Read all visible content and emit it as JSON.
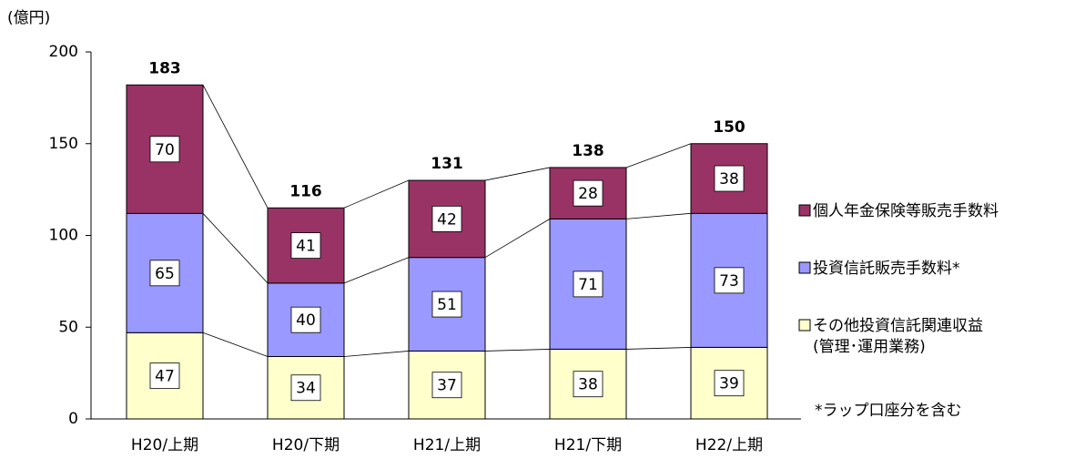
{
  "chart_data": {
    "type": "stacked_bar",
    "unit_label": "(億円)",
    "categories": [
      "H20/上期",
      "H20/下期",
      "H21/上期",
      "H21/下期",
      "H22/上期"
    ],
    "series": [
      {
        "name": "その他投資信託関連収益",
        "name_note": "(管理･運用業務)",
        "color": "#ffffcc",
        "values": [
          47,
          34,
          37,
          38,
          39
        ]
      },
      {
        "name": "投資信託販売手数料*",
        "color": "#9999ff",
        "values": [
          65,
          40,
          51,
          71,
          73
        ]
      },
      {
        "name": "個人年金保険等販売手数料",
        "color": "#993366",
        "values": [
          70,
          41,
          42,
          28,
          38
        ]
      }
    ],
    "totals": [
      183,
      116,
      131,
      138,
      150
    ],
    "footnote": "*ラップ口座分を含む",
    "ylim": [
      0,
      200
    ],
    "yticks": [
      0,
      50,
      100,
      150,
      200
    ],
    "legend": "right"
  }
}
